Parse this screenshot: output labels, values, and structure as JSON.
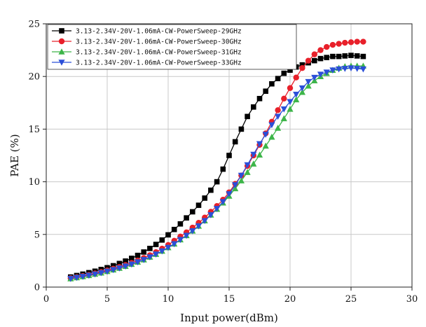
{
  "chart_data": {
    "type": "line",
    "xlabel": "Input power(dBm)",
    "ylabel": "PAE (%)",
    "xlim": [
      0,
      30
    ],
    "ylim": [
      0,
      25
    ],
    "xticks": [
      0,
      5,
      10,
      15,
      20,
      25,
      30
    ],
    "yticks": [
      0,
      5,
      10,
      15,
      20,
      25
    ],
    "grid": true,
    "legend_position": "top-left",
    "x": [
      2,
      2.5,
      3,
      3.5,
      4,
      4.5,
      5,
      5.5,
      6,
      6.5,
      7,
      7.5,
      8,
      8.5,
      9,
      9.5,
      10,
      10.5,
      11,
      11.5,
      12,
      12.5,
      13,
      13.5,
      14,
      14.5,
      15,
      15.5,
      16,
      16.5,
      17,
      17.5,
      18,
      18.5,
      19,
      19.5,
      20,
      20.5,
      21,
      21.5,
      22,
      22.5,
      23,
      23.5,
      24,
      24.5,
      25,
      25.5,
      26
    ],
    "series": [
      {
        "name": "3.13-2.34V-20V-1.06mA-CW-PowerSweep-29GHz",
        "color": "#000000",
        "marker": "square",
        "values": [
          0.96,
          1.1,
          1.23,
          1.37,
          1.51,
          1.67,
          1.84,
          2.03,
          2.24,
          2.47,
          2.73,
          3.01,
          3.33,
          3.67,
          4.05,
          4.47,
          4.96,
          5.47,
          6.0,
          6.57,
          7.15,
          7.77,
          8.45,
          9.2,
          10.0,
          11.2,
          12.5,
          13.8,
          15.0,
          16.2,
          17.1,
          17.9,
          18.6,
          19.3,
          19.8,
          20.3,
          20.6,
          20.9,
          21.1,
          21.3,
          21.5,
          21.7,
          21.8,
          21.9,
          21.9,
          21.95,
          22.0,
          21.95,
          21.9
        ]
      },
      {
        "name": "3.13-2.34V-20V-1.06mA-CW-PowerSweep-30GHz",
        "color": "#e8202a",
        "marker": "circle",
        "values": [
          0.85,
          0.95,
          1.06,
          1.17,
          1.3,
          1.43,
          1.58,
          1.74,
          1.91,
          2.1,
          2.3,
          2.52,
          2.76,
          3.03,
          3.32,
          3.65,
          4.0,
          4.4,
          4.8,
          5.2,
          5.65,
          6.1,
          6.6,
          7.15,
          7.7,
          8.3,
          9.0,
          9.8,
          10.6,
          11.5,
          12.5,
          13.5,
          14.6,
          15.7,
          16.8,
          17.9,
          18.9,
          19.9,
          20.8,
          21.5,
          22.1,
          22.5,
          22.8,
          23.0,
          23.1,
          23.2,
          23.25,
          23.3,
          23.3
        ]
      },
      {
        "name": "3.13-2.34V-20V-1.06mA-CW-PowerSweep-31GHz",
        "color": "#3db549",
        "marker": "triangle-up",
        "values": [
          0.8,
          0.9,
          1.0,
          1.11,
          1.23,
          1.35,
          1.49,
          1.64,
          1.8,
          1.98,
          2.17,
          2.38,
          2.6,
          2.85,
          3.12,
          3.42,
          3.75,
          4.1,
          4.5,
          4.9,
          5.33,
          5.8,
          6.3,
          6.85,
          7.4,
          8.0,
          8.65,
          9.35,
          10.1,
          10.9,
          11.7,
          12.55,
          13.4,
          14.25,
          15.1,
          16.0,
          16.9,
          17.8,
          18.5,
          19.1,
          19.6,
          20.0,
          20.3,
          20.6,
          20.8,
          20.95,
          21.0,
          21.0,
          21.0
        ]
      },
      {
        "name": "3.13-2.34V-20V-1.06mA-CW-PowerSweep-33GHz",
        "color": "#2b4fd8",
        "marker": "triangle-down",
        "values": [
          0.8,
          0.9,
          1.0,
          1.11,
          1.23,
          1.35,
          1.49,
          1.64,
          1.8,
          1.98,
          2.17,
          2.38,
          2.6,
          2.85,
          3.12,
          3.42,
          3.75,
          4.1,
          4.5,
          4.9,
          5.33,
          5.8,
          6.3,
          6.85,
          7.45,
          8.1,
          8.85,
          9.7,
          10.6,
          11.6,
          12.6,
          13.6,
          14.5,
          15.4,
          16.2,
          16.9,
          17.6,
          18.3,
          18.9,
          19.5,
          19.9,
          20.2,
          20.4,
          20.6,
          20.7,
          20.75,
          20.8,
          20.75,
          20.7
        ]
      }
    ]
  }
}
